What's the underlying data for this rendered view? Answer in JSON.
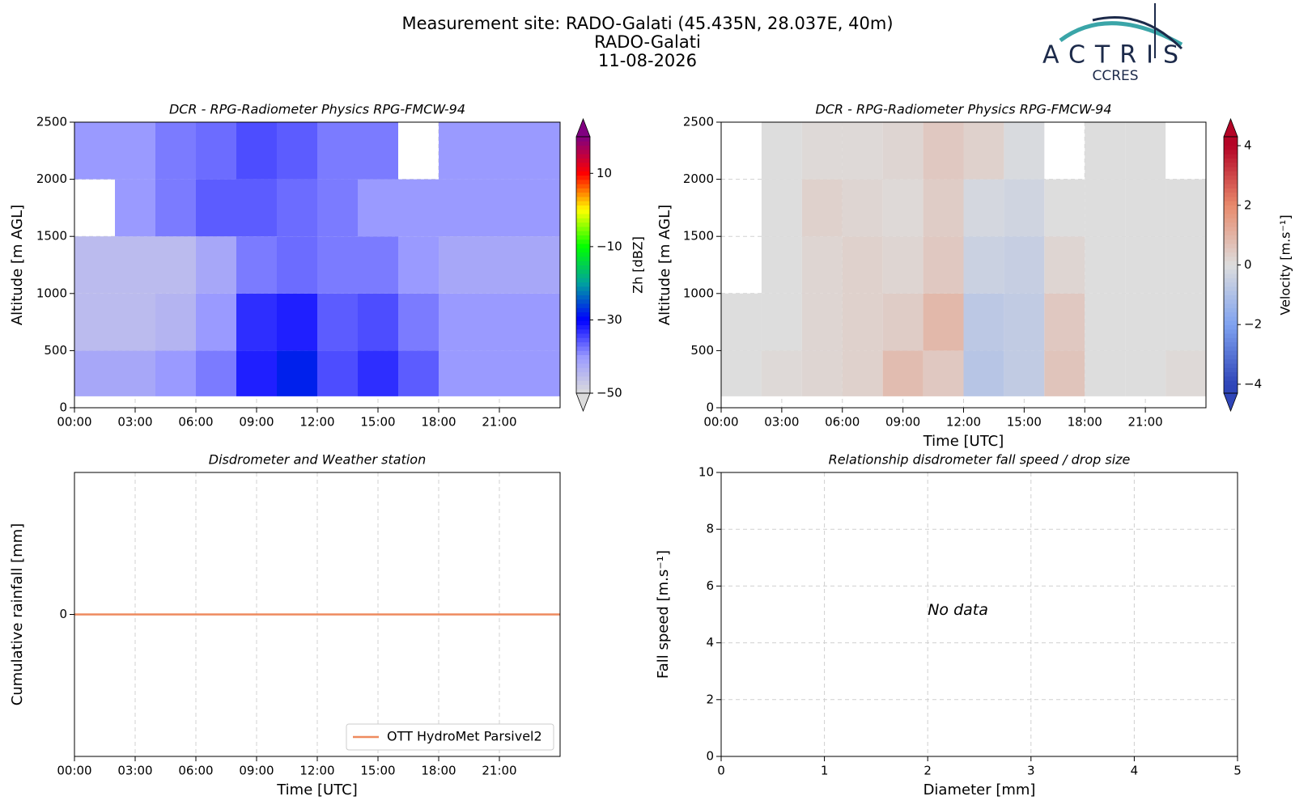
{
  "header": {
    "lines": [
      "Measurement site: RADO-Galati (45.435N, 28.037E, 40m)",
      "RADO-Galati",
      "11-08-2026"
    ]
  },
  "logo": {
    "name": "ACTRIS",
    "sub": "CCRES"
  },
  "chart_data": [
    {
      "type": "heatmap",
      "title": "DCR - RPG-Radiometer Physics RPG-FMCW-94",
      "ylabel": "Altitude [m AGL]",
      "x": [
        0,
        2,
        4,
        6,
        8,
        10,
        12,
        14,
        16,
        18,
        20,
        22,
        24
      ],
      "y": [
        100,
        500,
        1000,
        1500,
        2000,
        2500
      ],
      "z": [
        [
          -42,
          -42,
          -40,
          -38,
          -32,
          -28,
          -35,
          -33,
          -36,
          -40,
          -40,
          -40
        ],
        [
          -45,
          -45,
          -44,
          -40,
          -33,
          -32,
          -36,
          -35,
          -38,
          -40,
          -40,
          -40
        ],
        [
          -45,
          -45,
          -45,
          -42,
          -38,
          -37,
          -38,
          -38,
          -40,
          -42,
          -42,
          -42
        ],
        [
          null,
          -40,
          -38,
          -36,
          -36,
          -37,
          -38,
          -40,
          -40,
          -40,
          -40,
          -40
        ],
        [
          -40,
          -40,
          -38,
          -37,
          -35,
          -36,
          -38,
          -38,
          null,
          -40,
          -40,
          -40
        ]
      ],
      "xlim": [
        0,
        24
      ],
      "xticks": [
        {
          "value": 0,
          "label": "00:00"
        },
        {
          "value": 3,
          "label": "03:00"
        },
        {
          "value": 6,
          "label": "06:00"
        },
        {
          "value": 9,
          "label": "09:00"
        },
        {
          "value": 12,
          "label": "12:00"
        },
        {
          "value": 15,
          "label": "15:00"
        },
        {
          "value": 18,
          "label": "18:00"
        },
        {
          "value": 21,
          "label": "21:00"
        }
      ],
      "ylim": [
        0,
        2500
      ],
      "yticks": [
        0,
        500,
        1000,
        1500,
        2000,
        2500
      ],
      "grid": true,
      "colorbar_label": "Zh [dBZ]",
      "zlim": [
        -50,
        20
      ],
      "zticks": [
        {
          "value": -50,
          "label": "−50"
        },
        {
          "value": -30,
          "label": "−30"
        },
        {
          "value": -10,
          "label": "−10"
        },
        10
      ],
      "colorscale": [
        {
          "value": -50,
          "color": "#dcdcdc"
        },
        {
          "value": -40,
          "color": "#9a9aff"
        },
        {
          "value": -30,
          "color": "#0000ff"
        },
        {
          "value": -20,
          "color": "#00a0a0"
        },
        {
          "value": -10,
          "color": "#00ff00"
        },
        {
          "value": 0,
          "color": "#ffff00"
        },
        {
          "value": 5,
          "color": "#ff8000"
        },
        {
          "value": 10,
          "color": "#ff0000"
        },
        {
          "value": 20,
          "color": "#800080"
        }
      ]
    },
    {
      "type": "heatmap",
      "title": "DCR - RPG-Radiometer Physics RPG-FMCW-94",
      "ylabel": "Altitude [m AGL]",
      "xlabel": "Time [UTC]",
      "x": [
        0,
        2,
        4,
        6,
        8,
        10,
        12,
        14,
        16,
        18,
        20,
        22,
        24
      ],
      "y": [
        100,
        500,
        1000,
        1500,
        2000,
        2500
      ],
      "z": [
        [
          0,
          0.1,
          0.2,
          0.3,
          0.8,
          0.5,
          -0.8,
          -0.6,
          0.6,
          0,
          0,
          0.1
        ],
        [
          0,
          0,
          0.2,
          0.3,
          0.4,
          0.9,
          -0.7,
          -0.6,
          0.5,
          0,
          0,
          0
        ],
        [
          null,
          0,
          0.2,
          0.3,
          0.2,
          0.5,
          -0.4,
          -0.5,
          0.2,
          0,
          0,
          0
        ],
        [
          null,
          0,
          0.3,
          0.2,
          0.1,
          0.4,
          -0.2,
          -0.3,
          0,
          0,
          0,
          0
        ],
        [
          null,
          0,
          0.1,
          0.1,
          0.2,
          0.5,
          0.3,
          -0.1,
          null,
          0,
          0,
          null
        ]
      ],
      "xlim": [
        0,
        24
      ],
      "xticks": [
        {
          "value": 0,
          "label": "00:00"
        },
        {
          "value": 3,
          "label": "03:00"
        },
        {
          "value": 6,
          "label": "06:00"
        },
        {
          "value": 9,
          "label": "09:00"
        },
        {
          "value": 12,
          "label": "12:00"
        },
        {
          "value": 15,
          "label": "15:00"
        },
        {
          "value": 18,
          "label": "18:00"
        },
        {
          "value": 21,
          "label": "21:00"
        }
      ],
      "ylim": [
        0,
        2500
      ],
      "yticks": [
        0,
        500,
        1000,
        1500,
        2000,
        2500
      ],
      "grid": true,
      "colorbar_label": "Velocity [m.s⁻¹]",
      "zlim": [
        -4.3,
        4.3
      ],
      "zticks": [
        {
          "value": -4,
          "label": "−4"
        },
        {
          "value": -2,
          "label": "−2"
        },
        0,
        2,
        4
      ],
      "colorscale": [
        {
          "value": -4,
          "color": "#2f45b8"
        },
        {
          "value": -2,
          "color": "#7fa2f0"
        },
        {
          "value": 0,
          "color": "#dddddd"
        },
        {
          "value": 2,
          "color": "#e88a6c"
        },
        {
          "value": 4,
          "color": "#b40426"
        }
      ]
    },
    {
      "type": "line",
      "title": "Disdrometer and Weather station",
      "ylabel": "Cumulative rainfall [mm]",
      "xlabel": "Time [UTC]",
      "x": [
        0,
        24
      ],
      "series": [
        {
          "name": "OTT HydroMet Parsivel2",
          "color": "#ee8a5e",
          "values": [
            0,
            0
          ]
        }
      ],
      "xlim": [
        0,
        24
      ],
      "xticks": [
        {
          "value": 0,
          "label": "00:00"
        },
        {
          "value": 3,
          "label": "03:00"
        },
        {
          "value": 6,
          "label": "06:00"
        },
        {
          "value": 9,
          "label": "09:00"
        },
        {
          "value": 12,
          "label": "12:00"
        },
        {
          "value": 15,
          "label": "15:00"
        },
        {
          "value": 18,
          "label": "18:00"
        },
        {
          "value": 21,
          "label": "21:00"
        }
      ],
      "ylim": [
        -0.055,
        0.055
      ],
      "yticks": [
        0
      ],
      "grid": true,
      "legend": "lower right"
    },
    {
      "type": "empty",
      "title": "Relationship disdrometer fall speed / drop size",
      "ylabel": "Fall speed [m.s⁻¹]",
      "xlabel": "Diameter [mm]",
      "annotation": "No data",
      "xlim": [
        0,
        5
      ],
      "xticks": [
        0,
        1,
        2,
        3,
        4,
        5
      ],
      "ylim": [
        0,
        10
      ],
      "yticks": [
        0,
        2,
        4,
        6,
        8,
        10
      ],
      "grid": true
    }
  ]
}
